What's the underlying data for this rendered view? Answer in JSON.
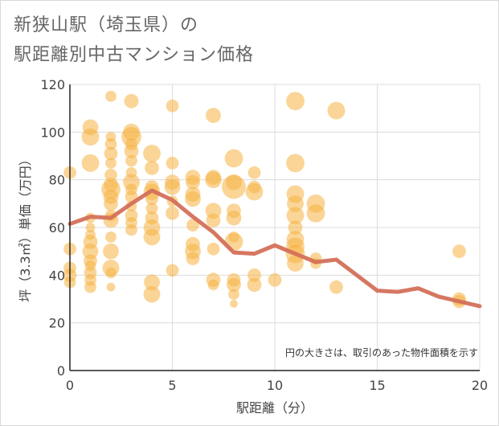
{
  "title": {
    "line1": "新狭山駅（埼玉県）の",
    "line2": "駅距離別中古マンション価格"
  },
  "note": "円の大きさは、取引のあった物件面積を示す",
  "colors": {
    "bubble": "#f5b342",
    "line": "#d4705a",
    "grid": "#dcdcdc",
    "axis": "#222222"
  },
  "chart_data": {
    "type": "scatter",
    "xlabel": "駅距離（分）",
    "ylabel": "坪（3.3㎡）単価（万円）",
    "xlim": [
      0,
      20
    ],
    "ylim": [
      0,
      120
    ],
    "xticks": [
      0,
      5,
      10,
      15,
      20
    ],
    "yticks": [
      0,
      20,
      40,
      60,
      80,
      100,
      120
    ],
    "grid": true,
    "series": [
      {
        "kind": "bubble",
        "points": [
          {
            "x": 0,
            "y": 83,
            "s": 14
          },
          {
            "x": 0,
            "y": 51,
            "s": 14
          },
          {
            "x": 0,
            "y": 43,
            "s": 14
          },
          {
            "x": 0,
            "y": 40,
            "s": 15
          },
          {
            "x": 0,
            "y": 37,
            "s": 13
          },
          {
            "x": 1,
            "y": 102,
            "s": 18
          },
          {
            "x": 1,
            "y": 98,
            "s": 20
          },
          {
            "x": 1,
            "y": 87,
            "s": 20
          },
          {
            "x": 1,
            "y": 64,
            "s": 11
          },
          {
            "x": 1,
            "y": 60,
            "s": 10
          },
          {
            "x": 1,
            "y": 57,
            "s": 11
          },
          {
            "x": 1,
            "y": 54,
            "s": 16
          },
          {
            "x": 1,
            "y": 50,
            "s": 18
          },
          {
            "x": 1,
            "y": 46,
            "s": 15
          },
          {
            "x": 1,
            "y": 44,
            "s": 12
          },
          {
            "x": 1,
            "y": 41,
            "s": 14
          },
          {
            "x": 1,
            "y": 38,
            "s": 13
          },
          {
            "x": 1,
            "y": 35,
            "s": 13
          },
          {
            "x": 2,
            "y": 115,
            "s": 12
          },
          {
            "x": 2,
            "y": 98,
            "s": 11
          },
          {
            "x": 2,
            "y": 95,
            "s": 13
          },
          {
            "x": 2,
            "y": 91,
            "s": 15
          },
          {
            "x": 2,
            "y": 87,
            "s": 12
          },
          {
            "x": 2,
            "y": 82,
            "s": 14
          },
          {
            "x": 2,
            "y": 78,
            "s": 16
          },
          {
            "x": 2,
            "y": 76,
            "s": 22
          },
          {
            "x": 2,
            "y": 73,
            "s": 17
          },
          {
            "x": 2,
            "y": 70,
            "s": 16
          },
          {
            "x": 2,
            "y": 65,
            "s": 13
          },
          {
            "x": 2,
            "y": 63,
            "s": 17
          },
          {
            "x": 2,
            "y": 56,
            "s": 12
          },
          {
            "x": 2,
            "y": 50,
            "s": 18
          },
          {
            "x": 2,
            "y": 43,
            "s": 19
          },
          {
            "x": 2,
            "y": 41,
            "s": 12
          },
          {
            "x": 2,
            "y": 35,
            "s": 9
          },
          {
            "x": 3,
            "y": 113,
            "s": 16
          },
          {
            "x": 3,
            "y": 100,
            "s": 19
          },
          {
            "x": 3,
            "y": 98,
            "s": 23
          },
          {
            "x": 3,
            "y": 95,
            "s": 14
          },
          {
            "x": 3,
            "y": 92,
            "s": 16
          },
          {
            "x": 3,
            "y": 88,
            "s": 13
          },
          {
            "x": 3,
            "y": 83,
            "s": 12
          },
          {
            "x": 3,
            "y": 79,
            "s": 19
          },
          {
            "x": 3,
            "y": 76,
            "s": 13
          },
          {
            "x": 3,
            "y": 73,
            "s": 14
          },
          {
            "x": 3,
            "y": 69,
            "s": 12
          },
          {
            "x": 3,
            "y": 65,
            "s": 14
          },
          {
            "x": 3,
            "y": 62,
            "s": 13
          },
          {
            "x": 3,
            "y": 59,
            "s": 13
          },
          {
            "x": 4,
            "y": 91,
            "s": 20
          },
          {
            "x": 4,
            "y": 85,
            "s": 16
          },
          {
            "x": 4,
            "y": 77,
            "s": 15
          },
          {
            "x": 4,
            "y": 75,
            "s": 19
          },
          {
            "x": 4,
            "y": 72,
            "s": 14
          },
          {
            "x": 4,
            "y": 68,
            "s": 13
          },
          {
            "x": 4,
            "y": 64,
            "s": 15
          },
          {
            "x": 4,
            "y": 60,
            "s": 19
          },
          {
            "x": 4,
            "y": 56,
            "s": 19
          },
          {
            "x": 4,
            "y": 37,
            "s": 18
          },
          {
            "x": 4,
            "y": 32,
            "s": 19
          },
          {
            "x": 5,
            "y": 111,
            "s": 14
          },
          {
            "x": 5,
            "y": 87,
            "s": 14
          },
          {
            "x": 5,
            "y": 79,
            "s": 17
          },
          {
            "x": 5,
            "y": 77,
            "s": 18
          },
          {
            "x": 5,
            "y": 71,
            "s": 12
          },
          {
            "x": 5,
            "y": 66,
            "s": 15
          },
          {
            "x": 5,
            "y": 42,
            "s": 14
          },
          {
            "x": 6,
            "y": 81,
            "s": 17
          },
          {
            "x": 6,
            "y": 79,
            "s": 16
          },
          {
            "x": 6,
            "y": 74,
            "s": 17
          },
          {
            "x": 6,
            "y": 72,
            "s": 18
          },
          {
            "x": 6,
            "y": 61,
            "s": 14
          },
          {
            "x": 6,
            "y": 53,
            "s": 16
          },
          {
            "x": 6,
            "y": 50,
            "s": 18
          },
          {
            "x": 6,
            "y": 47,
            "s": 15
          },
          {
            "x": 7,
            "y": 107,
            "s": 17
          },
          {
            "x": 7,
            "y": 81,
            "s": 17
          },
          {
            "x": 7,
            "y": 80,
            "s": 19
          },
          {
            "x": 7,
            "y": 67,
            "s": 18
          },
          {
            "x": 7,
            "y": 63,
            "s": 16
          },
          {
            "x": 7,
            "y": 51,
            "s": 14
          },
          {
            "x": 7,
            "y": 38,
            "s": 16
          },
          {
            "x": 7,
            "y": 36,
            "s": 12
          },
          {
            "x": 8,
            "y": 89,
            "s": 21
          },
          {
            "x": 8,
            "y": 79,
            "s": 18
          },
          {
            "x": 8,
            "y": 77,
            "s": 28
          },
          {
            "x": 8,
            "y": 67,
            "s": 16
          },
          {
            "x": 8,
            "y": 64,
            "s": 17
          },
          {
            "x": 8,
            "y": 56,
            "s": 12
          },
          {
            "x": 8,
            "y": 54,
            "s": 21
          },
          {
            "x": 8,
            "y": 38,
            "s": 15
          },
          {
            "x": 8,
            "y": 36,
            "s": 16
          },
          {
            "x": 8,
            "y": 32,
            "s": 12
          },
          {
            "x": 8,
            "y": 28,
            "s": 8
          },
          {
            "x": 9,
            "y": 83,
            "s": 14
          },
          {
            "x": 9,
            "y": 77,
            "s": 14
          },
          {
            "x": 9,
            "y": 75,
            "s": 20
          },
          {
            "x": 9,
            "y": 40,
            "s": 15
          },
          {
            "x": 9,
            "y": 36,
            "s": 16
          },
          {
            "x": 10,
            "y": 38,
            "s": 15
          },
          {
            "x": 11,
            "y": 113,
            "s": 21
          },
          {
            "x": 11,
            "y": 87,
            "s": 21
          },
          {
            "x": 11,
            "y": 74,
            "s": 20
          },
          {
            "x": 11,
            "y": 70,
            "s": 19
          },
          {
            "x": 11,
            "y": 65,
            "s": 20
          },
          {
            "x": 11,
            "y": 60,
            "s": 16
          },
          {
            "x": 11,
            "y": 55,
            "s": 20
          },
          {
            "x": 11,
            "y": 52,
            "s": 21
          },
          {
            "x": 11,
            "y": 49,
            "s": 22
          },
          {
            "x": 11,
            "y": 45,
            "s": 19
          },
          {
            "x": 12,
            "y": 70,
            "s": 21
          },
          {
            "x": 12,
            "y": 66,
            "s": 21
          },
          {
            "x": 12,
            "y": 47,
            "s": 13
          },
          {
            "x": 12,
            "y": 45,
            "s": 12
          },
          {
            "x": 13,
            "y": 109,
            "s": 20
          },
          {
            "x": 13,
            "y": 35,
            "s": 15
          },
          {
            "x": 19,
            "y": 50,
            "s": 15
          },
          {
            "x": 19,
            "y": 30,
            "s": 15
          },
          {
            "x": 19,
            "y": 29,
            "s": 15
          }
        ]
      },
      {
        "kind": "line",
        "x": [
          0,
          1,
          2,
          3,
          4,
          5,
          6,
          7,
          8,
          9,
          10,
          11,
          12,
          13,
          15,
          16,
          17,
          18,
          20
        ],
        "y": [
          61.5,
          64.5,
          64,
          70,
          75.5,
          71.5,
          64.5,
          58,
          49.5,
          49,
          52.5,
          49,
          45.5,
          46.5,
          33.5,
          33,
          34.5,
          31,
          27
        ]
      }
    ]
  }
}
